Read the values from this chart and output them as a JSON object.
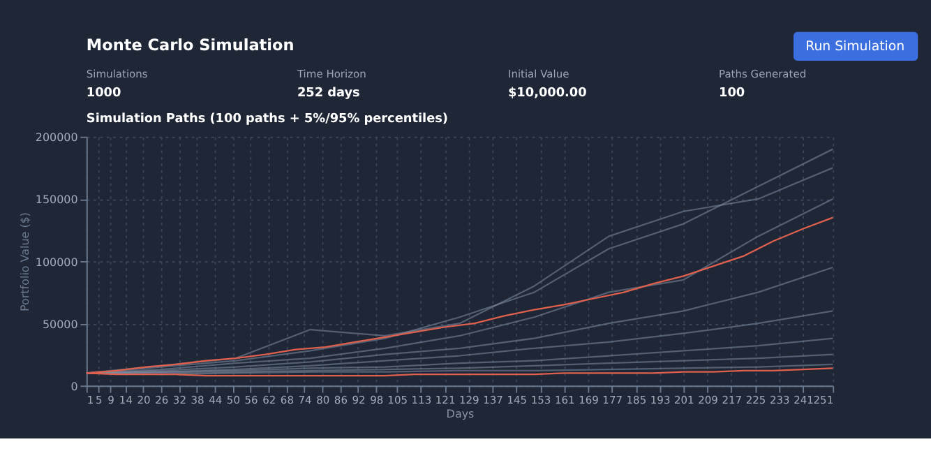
{
  "chart_data": {
    "type": "line",
    "title": "Monte Carlo Simulation",
    "subtitle": "Simulation Paths (100 paths + 5%/95% percentiles)",
    "annotations": [
      "Run Simulation",
      "Simulations",
      "1000",
      "Time Horizon",
      "252 days",
      "Initial Value",
      "$10,000.00",
      "Paths Generated",
      "100"
    ],
    "xlabel": "Days",
    "ylabel": "Portfolio Value ($)",
    "x": [
      1,
      11,
      21,
      31,
      41,
      51,
      61,
      71,
      81,
      91,
      101,
      111,
      121,
      131,
      141,
      151,
      161,
      171,
      181,
      191,
      201,
      211,
      221,
      231,
      241,
      251
    ],
    "series": [
      {
        "color": "#7f8ea3",
        "x": [
          1,
          26,
          51,
          76,
          101,
          126,
          151,
          176,
          201,
          226,
          251
        ],
        "values": [
          10000,
          15000,
          20000,
          28000,
          38000,
          55000,
          75000,
          110000,
          130000,
          160000,
          190000
        ]
      },
      {
        "color": "#7f8ea3",
        "x": [
          1,
          26,
          51,
          76,
          101,
          126,
          151,
          176,
          201,
          226,
          251
        ],
        "values": [
          10000,
          16000,
          22000,
          45000,
          40000,
          50000,
          80000,
          120000,
          140000,
          150000,
          175000
        ]
      },
      {
        "color": "#7f8ea3",
        "x": [
          1,
          26,
          51,
          76,
          101,
          126,
          151,
          176,
          201,
          226,
          251
        ],
        "values": [
          10000,
          13000,
          18000,
          22000,
          30000,
          40000,
          55000,
          75000,
          85000,
          120000,
          150000
        ]
      },
      {
        "color": "#7f8ea3",
        "x": [
          1,
          26,
          51,
          76,
          101,
          126,
          151,
          176,
          201,
          226,
          251
        ],
        "values": [
          10000,
          12000,
          15000,
          19000,
          25000,
          30000,
          38000,
          50000,
          60000,
          75000,
          95000
        ]
      },
      {
        "color": "#7f8ea3",
        "x": [
          1,
          26,
          51,
          76,
          101,
          126,
          151,
          176,
          201,
          226,
          251
        ],
        "values": [
          10000,
          11000,
          13000,
          16000,
          20000,
          24000,
          30000,
          35000,
          42000,
          50000,
          60000
        ]
      },
      {
        "color": "#7f8ea3",
        "x": [
          1,
          26,
          51,
          76,
          101,
          126,
          151,
          176,
          201,
          226,
          251
        ],
        "values": [
          10000,
          11000,
          12000,
          14000,
          15000,
          18000,
          20000,
          24000,
          28000,
          32000,
          38000
        ]
      },
      {
        "color": "#7f8ea3",
        "x": [
          1,
          26,
          51,
          76,
          101,
          126,
          151,
          176,
          201,
          226,
          251
        ],
        "values": [
          10000,
          10000,
          11000,
          12000,
          13000,
          14000,
          16000,
          18000,
          20000,
          22000,
          25000
        ]
      },
      {
        "color": "#7f8ea3",
        "x": [
          1,
          26,
          51,
          76,
          101,
          126,
          151,
          176,
          201,
          226,
          251
        ],
        "values": [
          10000,
          9000,
          10000,
          11000,
          11000,
          12000,
          12000,
          13000,
          14000,
          15000,
          17000
        ]
      },
      {
        "color": "#e0604e",
        "values": [
          10000,
          12000,
          15000,
          17000,
          20000,
          22000,
          25000,
          29000,
          31000,
          35000,
          39000,
          43000,
          47000,
          50000,
          56000,
          61000,
          65000,
          70000,
          75000,
          82000,
          88000,
          96000,
          104000,
          116000,
          126000,
          135000
        ]
      },
      {
        "color": "#e0604e",
        "values": [
          10000,
          9000,
          9000,
          9000,
          8000,
          8000,
          8000,
          8000,
          8000,
          8000,
          8000,
          9000,
          9000,
          9000,
          9000,
          9000,
          10000,
          10000,
          10000,
          10000,
          11000,
          11000,
          12000,
          12000,
          13000,
          14000
        ]
      }
    ],
    "xlim": [
      1,
      251
    ],
    "xticks": [
      1,
      5,
      9,
      14,
      20,
      26,
      32,
      38,
      44,
      50,
      56,
      62,
      68,
      74,
      80,
      86,
      92,
      98,
      105,
      113,
      121,
      129,
      137,
      145,
      153,
      161,
      169,
      177,
      185,
      193,
      201,
      209,
      217,
      225,
      233,
      241,
      251
    ],
    "ylim": [
      0,
      200000
    ],
    "yticks": [
      0,
      50000,
      100000,
      150000,
      200000
    ],
    "grid": true,
    "legend": false,
    "marker": "none",
    "line_style": "solid"
  }
}
